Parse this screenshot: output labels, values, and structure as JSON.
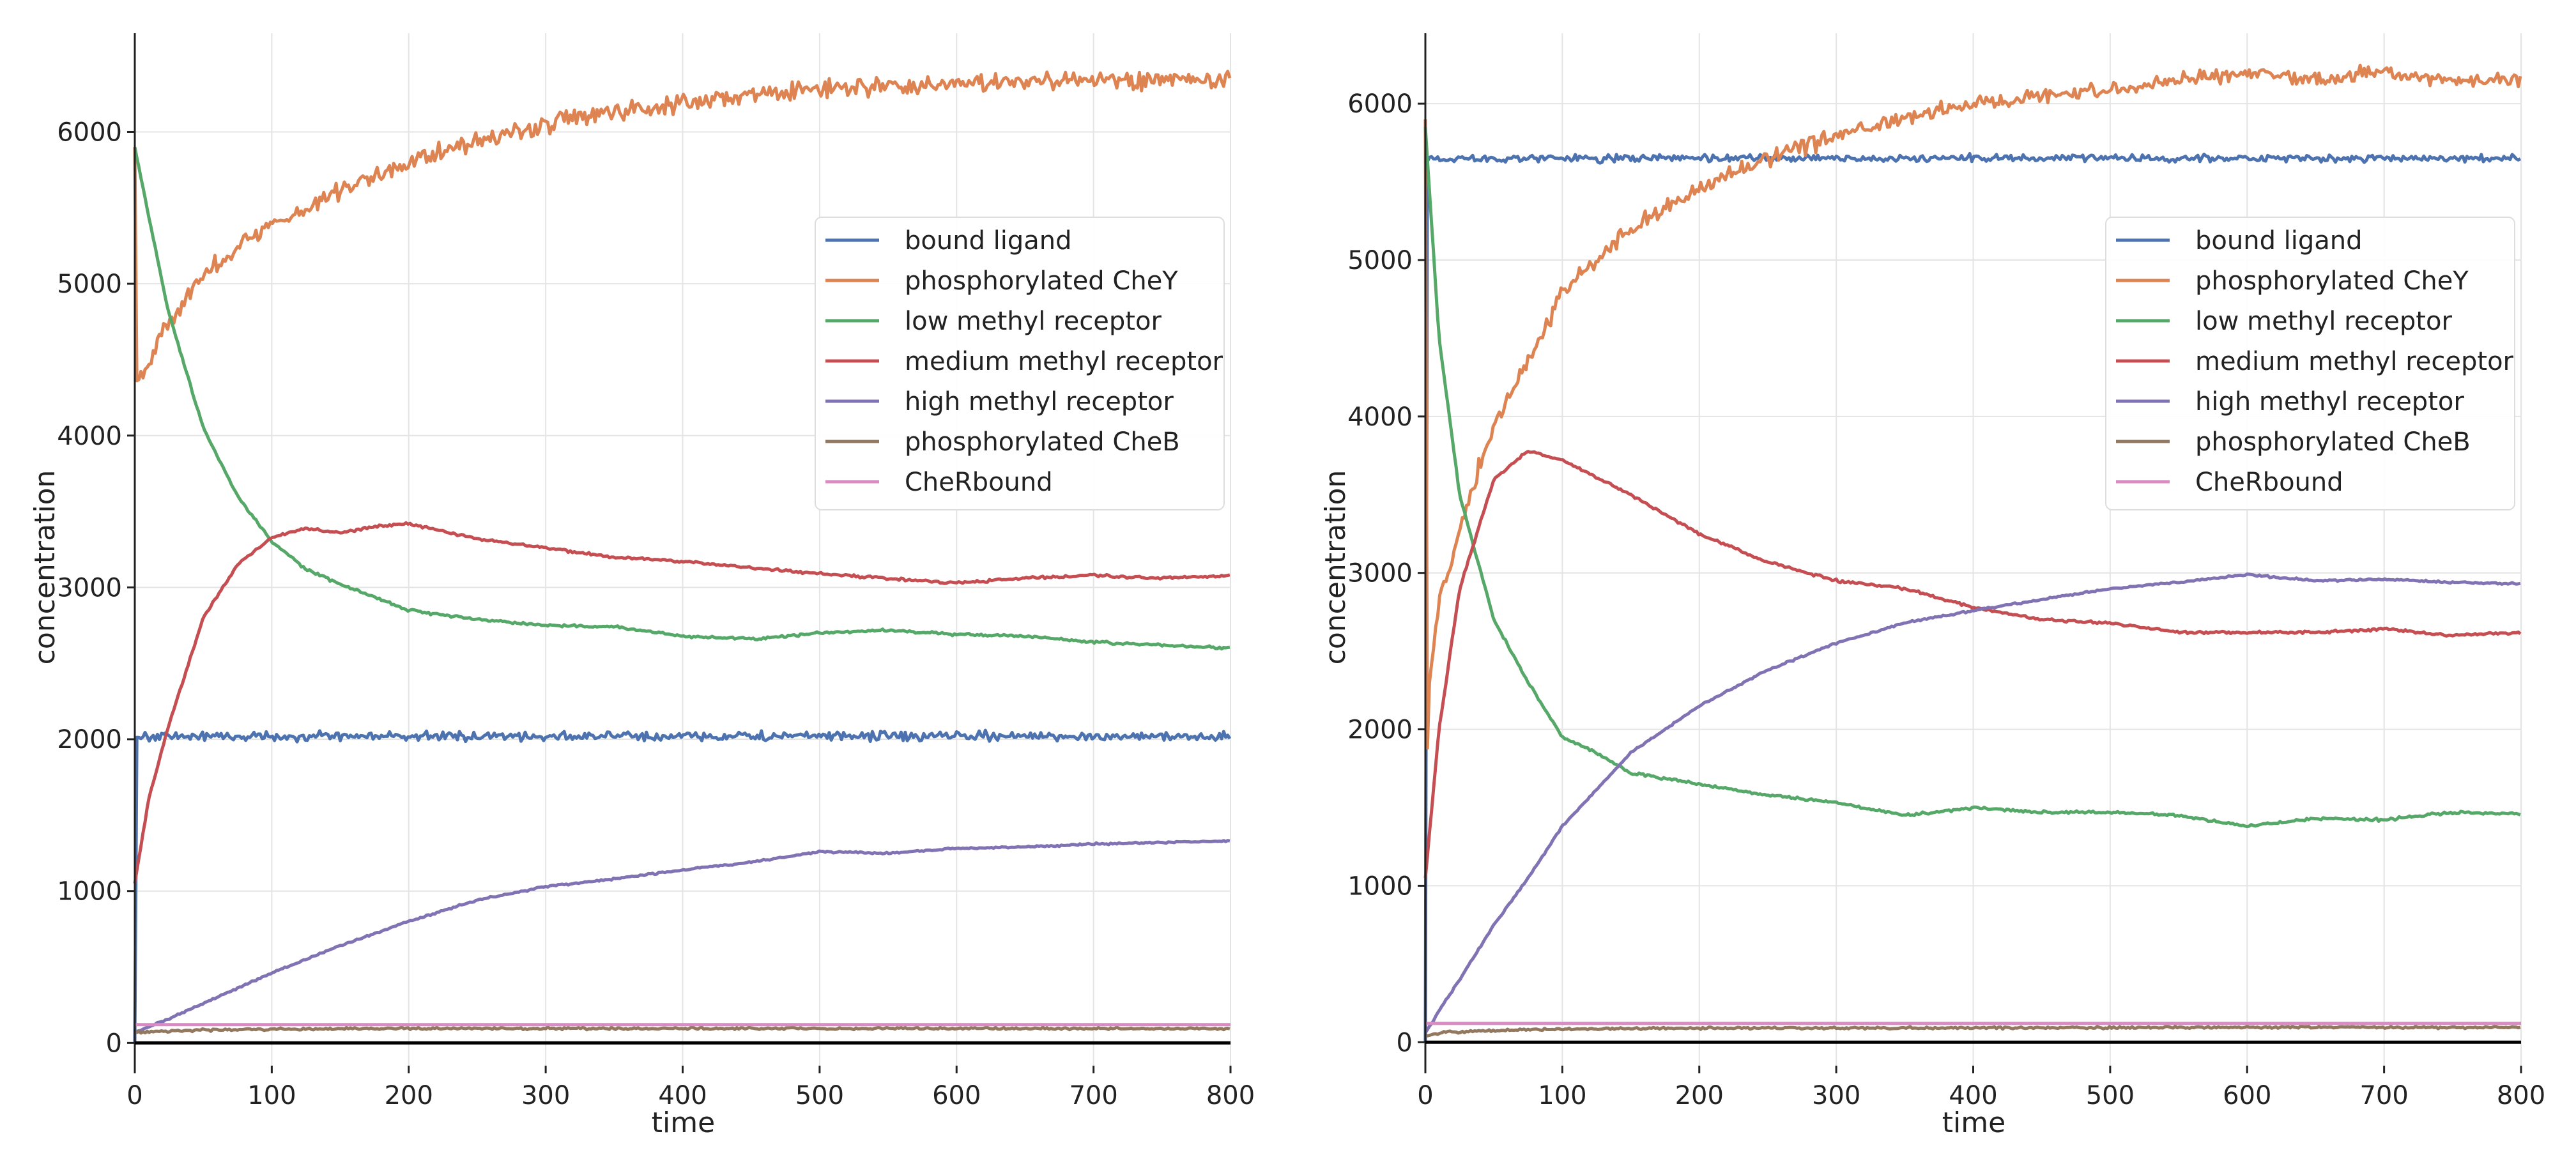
{
  "chart_data": [
    {
      "type": "line",
      "xlabel": "time",
      "ylabel": "concentration",
      "xlim": [
        0,
        800
      ],
      "ylim": [
        -150,
        6650
      ],
      "xticks": [
        0,
        100,
        200,
        300,
        400,
        500,
        600,
        700,
        800
      ],
      "yticks": [
        0,
        1000,
        2000,
        3000,
        4000,
        5000,
        6000
      ],
      "grid": true,
      "legend": "center-right",
      "series": [
        {
          "name": "bound ligand",
          "color": "#4c72b0",
          "noise": 45,
          "x": [
            0,
            1,
            5,
            800
          ],
          "y": [
            0,
            2000,
            2020,
            2020
          ]
        },
        {
          "name": "phosphorylated CheY",
          "color": "#dd8452",
          "noise": 90,
          "x": [
            0,
            1,
            10,
            25,
            50,
            75,
            100,
            150,
            200,
            250,
            300,
            350,
            400,
            500,
            600,
            700,
            800
          ],
          "y": [
            5900,
            4350,
            4500,
            4750,
            5050,
            5250,
            5380,
            5620,
            5800,
            5950,
            6050,
            6130,
            6200,
            6280,
            6320,
            6340,
            6350
          ]
        },
        {
          "name": "low methyl receptor",
          "color": "#55a868",
          "noise": 12,
          "x": [
            0,
            10,
            25,
            50,
            75,
            100,
            125,
            150,
            200,
            250,
            300,
            350,
            400,
            450,
            500,
            550,
            600,
            650,
            700,
            750,
            800
          ],
          "y": [
            5900,
            5450,
            4800,
            4050,
            3600,
            3300,
            3120,
            3020,
            2850,
            2790,
            2750,
            2740,
            2680,
            2660,
            2700,
            2720,
            2690,
            2680,
            2640,
            2620,
            2600
          ]
        },
        {
          "name": "medium methyl receptor",
          "color": "#c44e52",
          "noise": 12,
          "x": [
            0,
            10,
            25,
            50,
            75,
            100,
            125,
            150,
            175,
            200,
            250,
            300,
            350,
            400,
            450,
            500,
            550,
            600,
            650,
            700,
            750,
            800
          ],
          "y": [
            1050,
            1600,
            2100,
            2800,
            3150,
            3330,
            3390,
            3360,
            3400,
            3420,
            3320,
            3260,
            3200,
            3170,
            3130,
            3090,
            3060,
            3030,
            3060,
            3080,
            3060,
            3080
          ]
        },
        {
          "name": "high methyl receptor",
          "color": "#8172b3",
          "noise": 8,
          "x": [
            0,
            25,
            50,
            100,
            150,
            200,
            250,
            300,
            350,
            400,
            450,
            500,
            550,
            600,
            650,
            700,
            750,
            800
          ],
          "y": [
            70,
            160,
            260,
            460,
            640,
            800,
            940,
            1030,
            1080,
            1140,
            1190,
            1260,
            1250,
            1280,
            1290,
            1310,
            1320,
            1330
          ]
        },
        {
          "name": "phosphorylated CheB",
          "color": "#937860",
          "noise": 10,
          "x": [
            0,
            10,
            50,
            100,
            200,
            400,
            600,
            800
          ],
          "y": [
            70,
            75,
            85,
            90,
            95,
            95,
            95,
            95
          ]
        },
        {
          "name": "CheRbound",
          "color": "#da8bc3",
          "noise": 0,
          "x": [
            0,
            800
          ],
          "y": [
            120,
            120
          ]
        }
      ]
    },
    {
      "type": "line",
      "xlabel": "time",
      "ylabel": "concentration",
      "xlim": [
        0,
        800
      ],
      "ylim": [
        -150,
        6450
      ],
      "xticks": [
        0,
        100,
        200,
        300,
        400,
        500,
        600,
        700,
        800
      ],
      "yticks": [
        0,
        1000,
        2000,
        3000,
        4000,
        5000,
        6000
      ],
      "grid": true,
      "legend": "center-right",
      "series": [
        {
          "name": "bound ligand",
          "color": "#4c72b0",
          "noise": 35,
          "x": [
            0,
            1,
            5,
            800
          ],
          "y": [
            0,
            5650,
            5650,
            5650
          ]
        },
        {
          "name": "phosphorylated CheY",
          "color": "#dd8452",
          "noise": 75,
          "x": [
            0,
            1,
            3,
            10,
            25,
            50,
            75,
            100,
            150,
            200,
            250,
            300,
            350,
            400,
            450,
            500,
            550,
            600,
            650,
            700,
            750,
            800
          ],
          "y": [
            5900,
            1750,
            2300,
            2800,
            3300,
            3950,
            4350,
            4800,
            5200,
            5450,
            5650,
            5800,
            5900,
            6000,
            6050,
            6100,
            6150,
            6200,
            6150,
            6200,
            6150,
            6150
          ]
        },
        {
          "name": "low methyl receptor",
          "color": "#55a868",
          "noise": 12,
          "x": [
            0,
            10,
            25,
            50,
            75,
            100,
            125,
            150,
            200,
            250,
            300,
            350,
            400,
            450,
            500,
            550,
            600,
            650,
            700,
            750,
            800
          ],
          "y": [
            5850,
            4500,
            3500,
            2700,
            2300,
            1950,
            1850,
            1720,
            1650,
            1580,
            1530,
            1450,
            1500,
            1470,
            1470,
            1450,
            1380,
            1430,
            1420,
            1470,
            1460
          ]
        },
        {
          "name": "medium methyl receptor",
          "color": "#c44e52",
          "noise": 12,
          "x": [
            0,
            10,
            25,
            50,
            75,
            100,
            150,
            200,
            250,
            300,
            350,
            400,
            450,
            500,
            550,
            600,
            650,
            700,
            750,
            800
          ],
          "y": [
            1050,
            2000,
            2900,
            3600,
            3780,
            3720,
            3500,
            3250,
            3070,
            2950,
            2900,
            2780,
            2700,
            2680,
            2620,
            2620,
            2620,
            2640,
            2600,
            2620
          ]
        },
        {
          "name": "high methyl receptor",
          "color": "#8172b3",
          "noise": 8,
          "x": [
            0,
            10,
            25,
            50,
            75,
            100,
            150,
            200,
            250,
            300,
            350,
            400,
            450,
            500,
            550,
            600,
            650,
            700,
            750,
            800
          ],
          "y": [
            60,
            200,
            400,
            750,
            1050,
            1380,
            1850,
            2150,
            2380,
            2550,
            2680,
            2760,
            2830,
            2900,
            2940,
            2990,
            2950,
            2960,
            2940,
            2930
          ]
        },
        {
          "name": "phosphorylated CheB",
          "color": "#937860",
          "noise": 10,
          "x": [
            0,
            10,
            50,
            100,
            200,
            400,
            600,
            800
          ],
          "y": [
            40,
            60,
            75,
            85,
            90,
            92,
            95,
            95
          ]
        },
        {
          "name": "CheRbound",
          "color": "#da8bc3",
          "noise": 0,
          "x": [
            0,
            800
          ],
          "y": [
            120,
            120
          ]
        }
      ]
    }
  ]
}
